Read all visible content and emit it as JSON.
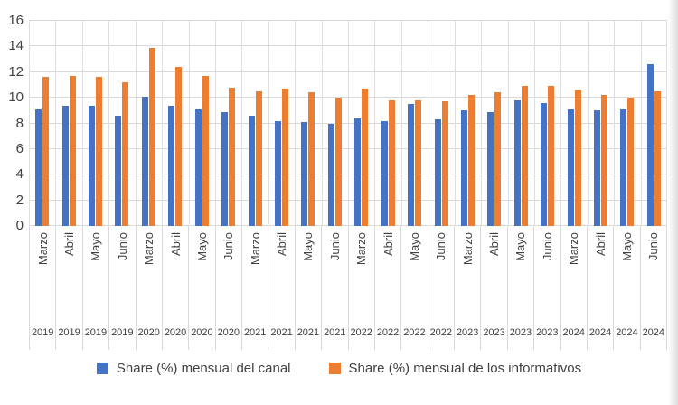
{
  "chart_data": {
    "type": "bar",
    "title": "",
    "y_axis": {
      "min": 0,
      "max": 16,
      "step": 2,
      "ticks": [
        "0",
        "2",
        "4",
        "6",
        "8",
        "10",
        "12",
        "14",
        "16"
      ]
    },
    "grid": true,
    "legend_position": "bottom",
    "layout": {
      "grid_color": "#d9d9d9",
      "text_color": "#404040",
      "background": "#ffffff"
    },
    "categories": [
      {
        "month": "Marzo",
        "year": "2019"
      },
      {
        "month": "Abril",
        "year": "2019"
      },
      {
        "month": "Mayo",
        "year": "2019"
      },
      {
        "month": "Junio",
        "year": "2019"
      },
      {
        "month": "Marzo",
        "year": "2020"
      },
      {
        "month": "Abril",
        "year": "2020"
      },
      {
        "month": "Mayo",
        "year": "2020"
      },
      {
        "month": "Junio",
        "year": "2020"
      },
      {
        "month": "Marzo",
        "year": "2021"
      },
      {
        "month": "Abril",
        "year": "2021"
      },
      {
        "month": "Mayo",
        "year": "2021"
      },
      {
        "month": "Junio",
        "year": "2021"
      },
      {
        "month": "Marzo",
        "year": "2022"
      },
      {
        "month": "Abril",
        "year": "2022"
      },
      {
        "month": "Mayo",
        "year": "2022"
      },
      {
        "month": "Junio",
        "year": "2022"
      },
      {
        "month": "Marzo",
        "year": "2023"
      },
      {
        "month": "Abril",
        "year": "2023"
      },
      {
        "month": "Mayo",
        "year": "2023"
      },
      {
        "month": "Junio",
        "year": "2023"
      },
      {
        "month": "Marzo",
        "year": "2024"
      },
      {
        "month": "Abril",
        "year": "2024"
      },
      {
        "month": "Mayo",
        "year": "2024"
      },
      {
        "month": "Junio",
        "year": "2024"
      }
    ],
    "series": [
      {
        "name": "Share (%) mensual del canal",
        "color": "#4472c4",
        "values": [
          9.1,
          9.4,
          9.4,
          8.6,
          10.1,
          9.4,
          9.1,
          8.9,
          8.6,
          8.2,
          8.1,
          8.0,
          8.4,
          8.2,
          9.5,
          8.3,
          9.0,
          8.9,
          9.8,
          9.6,
          9.1,
          9.0,
          9.1,
          12.6
        ]
      },
      {
        "name": "Share (%) mensual de los informativos",
        "color": "#ed7d31",
        "values": [
          11.6,
          11.7,
          11.6,
          11.2,
          13.9,
          12.4,
          11.7,
          10.8,
          10.5,
          10.7,
          10.4,
          10.0,
          10.7,
          9.8,
          9.8,
          9.7,
          10.2,
          10.4,
          10.9,
          10.9,
          10.6,
          10.2,
          10.0,
          10.5
        ]
      }
    ]
  }
}
